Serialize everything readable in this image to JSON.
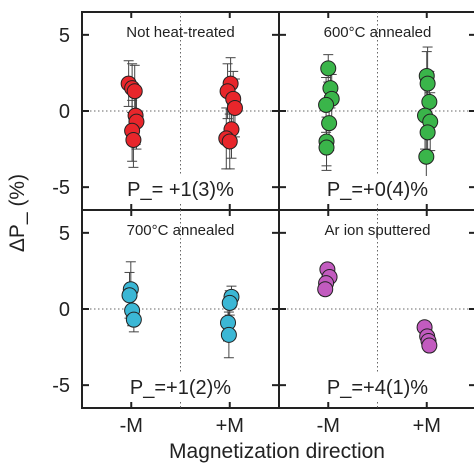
{
  "figure": {
    "xlabel": "Magnetization direction",
    "ylabel": "ΔP_ (%)"
  },
  "chart_data": [
    {
      "type": "scatter",
      "title": "Not heat-treated",
      "annotation": "P_= +1(3)%",
      "color": "#e8262b",
      "categories": [
        "-M",
        "+M"
      ],
      "ylim": [
        -6.5,
        6.5
      ],
      "yticks": [
        5,
        0,
        -5
      ],
      "points": [
        {
          "cat": "-M",
          "dx": -0.06,
          "y": 1.8,
          "err": 1.5
        },
        {
          "cat": "-M",
          "dx": 0.02,
          "y": 1.5,
          "err": 1.6
        },
        {
          "cat": "-M",
          "dx": 0.08,
          "y": 1.3,
          "err": 1.7
        },
        {
          "cat": "-M",
          "dx": 0.1,
          "y": -0.3,
          "err": 1.9
        },
        {
          "cat": "-M",
          "dx": 0.12,
          "y": -0.7,
          "err": 1.8
        },
        {
          "cat": "-M",
          "dx": 0.02,
          "y": -1.3,
          "err": 2.0
        },
        {
          "cat": "-M",
          "dx": 0.05,
          "y": -1.9,
          "err": 1.8
        },
        {
          "cat": "+M",
          "dx": 0.02,
          "y": 1.8,
          "err": 1.7
        },
        {
          "cat": "+M",
          "dx": -0.05,
          "y": 1.3,
          "err": 1.8
        },
        {
          "cat": "+M",
          "dx": 0.08,
          "y": 0.8,
          "err": 1.8
        },
        {
          "cat": "+M",
          "dx": 0.12,
          "y": 0.2,
          "err": 1.9
        },
        {
          "cat": "+M",
          "dx": 0.04,
          "y": -1.2,
          "err": 1.9
        },
        {
          "cat": "+M",
          "dx": -0.08,
          "y": -1.8,
          "err": 2.0
        },
        {
          "cat": "+M",
          "dx": 0.0,
          "y": -2.0,
          "err": 1.8
        }
      ]
    },
    {
      "type": "scatter",
      "title": "600°C annealed",
      "annotation": "P_=+0(4)%",
      "color": "#3ab54a",
      "categories": [
        "-M",
        "+M"
      ],
      "ylim": [
        -6.5,
        6.5
      ],
      "yticks": [
        5,
        0,
        -5
      ],
      "points": [
        {
          "cat": "-M",
          "dx": 0.0,
          "y": 2.8,
          "err": 0.9
        },
        {
          "cat": "-M",
          "dx": 0.05,
          "y": 1.5,
          "err": 1.3
        },
        {
          "cat": "-M",
          "dx": 0.08,
          "y": 0.8,
          "err": 1.6
        },
        {
          "cat": "-M",
          "dx": -0.05,
          "y": 0.4,
          "err": 1.8
        },
        {
          "cat": "-M",
          "dx": 0.02,
          "y": -0.8,
          "err": 1.8
        },
        {
          "cat": "-M",
          "dx": -0.04,
          "y": -2.0,
          "err": 1.6
        },
        {
          "cat": "-M",
          "dx": -0.04,
          "y": -2.4,
          "err": 1.5
        },
        {
          "cat": "+M",
          "dx": 0.0,
          "y": 2.3,
          "err": 1.6
        },
        {
          "cat": "+M",
          "dx": 0.02,
          "y": 1.8,
          "err": 2.4
        },
        {
          "cat": "+M",
          "dx": 0.06,
          "y": 0.6,
          "err": 2.0
        },
        {
          "cat": "+M",
          "dx": -0.04,
          "y": -0.3,
          "err": 2.2
        },
        {
          "cat": "+M",
          "dx": 0.08,
          "y": -0.7,
          "err": 1.9
        },
        {
          "cat": "+M",
          "dx": 0.02,
          "y": -1.4,
          "err": 1.8
        },
        {
          "cat": "+M",
          "dx": -0.01,
          "y": -3.0,
          "err": 1.6
        }
      ]
    },
    {
      "type": "scatter",
      "title": "700°C annealed",
      "annotation": "P_=+1(2)%",
      "color": "#3bb7d5",
      "categories": [
        "-M",
        "+M"
      ],
      "ylim": [
        -6.5,
        6.5
      ],
      "yticks": [
        5,
        0,
        -5
      ],
      "points": [
        {
          "cat": "-M",
          "dx": -0.01,
          "y": 1.3,
          "err": 1.8
        },
        {
          "cat": "-M",
          "dx": -0.04,
          "y": 0.9,
          "err": 1.5
        },
        {
          "cat": "-M",
          "dx": 0.02,
          "y": -0.1,
          "err": 1.0
        },
        {
          "cat": "-M",
          "dx": 0.06,
          "y": -0.7,
          "err": 0.8
        },
        {
          "cat": "+M",
          "dx": 0.04,
          "y": 0.8,
          "err": 0.7
        },
        {
          "cat": "+M",
          "dx": 0.0,
          "y": 0.4,
          "err": 0.8
        },
        {
          "cat": "+M",
          "dx": -0.04,
          "y": -0.9,
          "err": 1.2
        },
        {
          "cat": "+M",
          "dx": -0.02,
          "y": -1.7,
          "err": 1.5
        }
      ]
    },
    {
      "type": "scatter",
      "title": "Ar ion sputtered",
      "annotation": "P_=+4(1)%",
      "color": "#c25bbf",
      "categories": [
        "-M",
        "+M"
      ],
      "ylim": [
        -6.5,
        6.5
      ],
      "yticks": [
        5,
        0,
        -5
      ],
      "points": [
        {
          "cat": "-M",
          "dx": -0.02,
          "y": 2.6,
          "err": 0.4
        },
        {
          "cat": "-M",
          "dx": 0.03,
          "y": 2.1,
          "err": 0.4
        },
        {
          "cat": "-M",
          "dx": -0.05,
          "y": 1.7,
          "err": 0.4
        },
        {
          "cat": "-M",
          "dx": -0.07,
          "y": 1.3,
          "err": 0.4
        },
        {
          "cat": "+M",
          "dx": -0.05,
          "y": -1.2,
          "err": 0.4
        },
        {
          "cat": "+M",
          "dx": 0.01,
          "y": -1.8,
          "err": 0.4
        },
        {
          "cat": "+M",
          "dx": 0.04,
          "y": -2.1,
          "err": 0.4
        },
        {
          "cat": "+M",
          "dx": 0.06,
          "y": -2.4,
          "err": 0.4
        }
      ]
    }
  ]
}
